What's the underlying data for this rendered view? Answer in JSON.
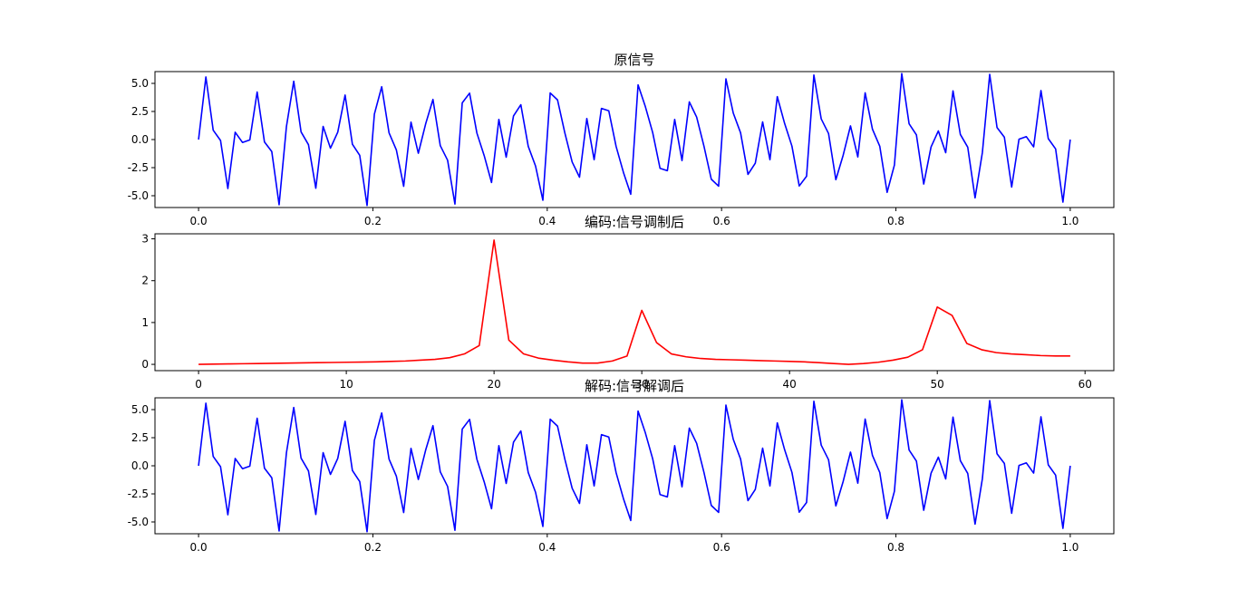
{
  "chart_data": [
    {
      "type": "line",
      "title": "原信号",
      "color": "#0000ff",
      "x": [
        0,
        0.0084,
        0.0168,
        0.0252,
        0.0336,
        0.042,
        0.0504,
        0.0588,
        0.0672,
        0.0756,
        0.084,
        0.0924,
        0.1008,
        0.1092,
        0.1176,
        0.1261,
        0.1345,
        0.1429,
        0.1513,
        0.1597,
        0.1681,
        0.1765,
        0.1849,
        0.1933,
        0.2017,
        0.2101,
        0.2185,
        0.2269,
        0.2353,
        0.2437,
        0.2521,
        0.2605,
        0.2689,
        0.2773,
        0.2857,
        0.2941,
        0.3025,
        0.3109,
        0.3193,
        0.3277,
        0.3361,
        0.3445,
        0.3529,
        0.3613,
        0.3697,
        0.3782,
        0.3866,
        0.395,
        0.4034,
        0.4118,
        0.4202,
        0.4286,
        0.437,
        0.4454,
        0.4538,
        0.4622,
        0.4706,
        0.479,
        0.4874,
        0.4958,
        0.5042,
        0.5126,
        0.521,
        0.5294,
        0.5378,
        0.5462,
        0.5546,
        0.563,
        0.5714,
        0.5798,
        0.5882,
        0.5966,
        0.605,
        0.6134,
        0.6218,
        0.6303,
        0.6387,
        0.6471,
        0.6555,
        0.6639,
        0.6723,
        0.6807,
        0.6891,
        0.6975,
        0.7059,
        0.7143,
        0.7227,
        0.7311,
        0.7395,
        0.7479,
        0.7563,
        0.7647,
        0.7731,
        0.7815,
        0.7899,
        0.7983,
        0.8067,
        0.8151,
        0.8235,
        0.8319,
        0.8403,
        0.8487,
        0.8571,
        0.8655,
        0.8739,
        0.8824,
        0.8908,
        0.8992,
        0.9076,
        0.916,
        0.9244,
        0.9328,
        0.9412,
        0.9496,
        0.958,
        0.9664,
        0.9748,
        0.9832,
        0.9916,
        1
      ],
      "values": [
        0,
        5.57,
        0.83,
        -0.08,
        -4.36,
        0.65,
        -0.26,
        -0.03,
        4.23,
        -0.21,
        -1.07,
        -5.8,
        1.15,
        5.19,
        0.68,
        -0.46,
        -4.33,
        1.17,
        -0.77,
        0.66,
        3.96,
        -0.42,
        -1.41,
        -5.87,
        2.26,
        4.7,
        0.6,
        -0.92,
        -4.16,
        1.55,
        -1.22,
        1.39,
        3.57,
        -0.54,
        -1.84,
        -5.74,
        3.27,
        4.13,
        0.58,
        -1.44,
        -3.82,
        1.79,
        -1.57,
        2.1,
        3.1,
        -0.6,
        -2.36,
        -5.4,
        4.15,
        3.53,
        0.59,
        -2,
        -3.35,
        1.87,
        -1.79,
        2.77,
        2.56,
        -0.61,
        -2.92,
        -4.87,
        4.87,
        2.92,
        0.61,
        -2.56,
        -2.77,
        1.79,
        -1.87,
        3.35,
        2,
        -0.59,
        -3.53,
        -4.15,
        5.4,
        2.36,
        0.6,
        -3.1,
        -2.1,
        1.57,
        -1.79,
        3.82,
        1.44,
        -0.58,
        -4.13,
        -3.27,
        5.74,
        1.84,
        0.54,
        -3.57,
        -1.39,
        1.22,
        -1.55,
        4.16,
        0.92,
        -0.6,
        -4.7,
        -2.26,
        5.87,
        1.41,
        0.42,
        -3.96,
        -0.66,
        0.77,
        -1.17,
        4.33,
        0.46,
        -0.68,
        -5.19,
        -1.15,
        5.8,
        1.07,
        0.21,
        -4.23,
        0.03,
        0.26,
        -0.65,
        4.36,
        0.08,
        -0.83,
        -5.57,
        0
      ],
      "xlim": [
        -0.05,
        1.05
      ],
      "ylim": [
        -6.05,
        6.05
      ],
      "xticks": [
        {
          "value": 0,
          "label": "0.0"
        },
        {
          "value": 0.2,
          "label": "0.2"
        },
        {
          "value": 0.4,
          "label": "0.4"
        },
        {
          "value": 0.6,
          "label": "0.6"
        },
        {
          "value": 0.8,
          "label": "0.8"
        },
        {
          "value": 1,
          "label": "1.0"
        }
      ],
      "yticks": [
        {
          "value": -5,
          "label": "-5.0"
        },
        {
          "value": -2.5,
          "label": "-2.5"
        },
        {
          "value": 0,
          "label": "0.0"
        },
        {
          "value": 2.5,
          "label": "2.5"
        },
        {
          "value": 5,
          "label": "5.0"
        }
      ]
    },
    {
      "type": "line",
      "title": "编码:信号调制后",
      "color": "#ff0000",
      "x": [
        0,
        1,
        2,
        3,
        4,
        5,
        6,
        7,
        8,
        9,
        10,
        11,
        12,
        13,
        14,
        15,
        16,
        17,
        18,
        19,
        20,
        21,
        22,
        23,
        24,
        25,
        26,
        27,
        28,
        29,
        30,
        31,
        32,
        33,
        34,
        35,
        36,
        37,
        38,
        39,
        40,
        41,
        42,
        43,
        44,
        45,
        46,
        47,
        48,
        49,
        50,
        51,
        52,
        53,
        54,
        55,
        56,
        57,
        58,
        59
      ],
      "values": [
        0,
        0.005,
        0.01,
        0.015,
        0.02,
        0.025,
        0.03,
        0.035,
        0.04,
        0.045,
        0.05,
        0.055,
        0.06,
        0.07,
        0.08,
        0.1,
        0.12,
        0.16,
        0.25,
        0.45,
        2.97,
        0.58,
        0.25,
        0.15,
        0.1,
        0.06,
        0.03,
        0.03,
        0.08,
        0.2,
        1.29,
        0.52,
        0.25,
        0.18,
        0.14,
        0.12,
        0.11,
        0.1,
        0.09,
        0.08,
        0.07,
        0.06,
        0.04,
        0.02,
        0,
        0.02,
        0.05,
        0.1,
        0.17,
        0.35,
        1.37,
        1.17,
        0.5,
        0.35,
        0.28,
        0.25,
        0.23,
        0.21,
        0.2,
        0.2
      ],
      "xlim": [
        -2.95,
        61.95
      ],
      "ylim": [
        -0.15,
        3.12
      ],
      "xticks": [
        0,
        10,
        20,
        30,
        40,
        50,
        60
      ],
      "yticks": [
        0,
        1,
        2,
        3
      ]
    },
    {
      "type": "line",
      "title": "解码:信号解调后",
      "color": "#0000ff",
      "x": [
        0,
        0.0084,
        0.0168,
        0.0252,
        0.0336,
        0.042,
        0.0504,
        0.0588,
        0.0672,
        0.0756,
        0.084,
        0.0924,
        0.1008,
        0.1092,
        0.1176,
        0.1261,
        0.1345,
        0.1429,
        0.1513,
        0.1597,
        0.1681,
        0.1765,
        0.1849,
        0.1933,
        0.2017,
        0.2101,
        0.2185,
        0.2269,
        0.2353,
        0.2437,
        0.2521,
        0.2605,
        0.2689,
        0.2773,
        0.2857,
        0.2941,
        0.3025,
        0.3109,
        0.3193,
        0.3277,
        0.3361,
        0.3445,
        0.3529,
        0.3613,
        0.3697,
        0.3782,
        0.3866,
        0.395,
        0.4034,
        0.4118,
        0.4202,
        0.4286,
        0.437,
        0.4454,
        0.4538,
        0.4622,
        0.4706,
        0.479,
        0.4874,
        0.4958,
        0.5042,
        0.5126,
        0.521,
        0.5294,
        0.5378,
        0.5462,
        0.5546,
        0.563,
        0.5714,
        0.5798,
        0.5882,
        0.5966,
        0.605,
        0.6134,
        0.6218,
        0.6303,
        0.6387,
        0.6471,
        0.6555,
        0.6639,
        0.6723,
        0.6807,
        0.6891,
        0.6975,
        0.7059,
        0.7143,
        0.7227,
        0.7311,
        0.7395,
        0.7479,
        0.7563,
        0.7647,
        0.7731,
        0.7815,
        0.7899,
        0.7983,
        0.8067,
        0.8151,
        0.8235,
        0.8319,
        0.8403,
        0.8487,
        0.8571,
        0.8655,
        0.8739,
        0.8824,
        0.8908,
        0.8992,
        0.9076,
        0.916,
        0.9244,
        0.9328,
        0.9412,
        0.9496,
        0.958,
        0.9664,
        0.9748,
        0.9832,
        0.9916,
        1
      ],
      "values": [
        0,
        5.57,
        0.83,
        -0.08,
        -4.36,
        0.65,
        -0.26,
        -0.03,
        4.23,
        -0.21,
        -1.07,
        -5.8,
        1.15,
        5.19,
        0.68,
        -0.46,
        -4.33,
        1.17,
        -0.77,
        0.66,
        3.96,
        -0.42,
        -1.41,
        -5.87,
        2.26,
        4.7,
        0.6,
        -0.92,
        -4.16,
        1.55,
        -1.22,
        1.39,
        3.57,
        -0.54,
        -1.84,
        -5.74,
        3.27,
        4.13,
        0.58,
        -1.44,
        -3.82,
        1.79,
        -1.57,
        2.1,
        3.1,
        -0.6,
        -2.36,
        -5.4,
        4.15,
        3.53,
        0.59,
        -2,
        -3.35,
        1.87,
        -1.79,
        2.77,
        2.56,
        -0.61,
        -2.92,
        -4.87,
        4.87,
        2.92,
        0.61,
        -2.56,
        -2.77,
        1.79,
        -1.87,
        3.35,
        2,
        -0.59,
        -3.53,
        -4.15,
        5.4,
        2.36,
        0.6,
        -3.1,
        -2.1,
        1.57,
        -1.79,
        3.82,
        1.44,
        -0.58,
        -4.13,
        -3.27,
        5.74,
        1.84,
        0.54,
        -3.57,
        -1.39,
        1.22,
        -1.55,
        4.16,
        0.92,
        -0.6,
        -4.7,
        -2.26,
        5.87,
        1.41,
        0.42,
        -3.96,
        -0.66,
        0.77,
        -1.17,
        4.33,
        0.46,
        -0.68,
        -5.19,
        -1.15,
        5.8,
        1.07,
        0.21,
        -4.23,
        0.03,
        0.26,
        -0.65,
        4.36,
        0.08,
        -0.83,
        -5.57,
        0
      ],
      "xlim": [
        -0.05,
        1.05
      ],
      "ylim": [
        -6.05,
        6.05
      ],
      "xticks": [
        {
          "value": 0,
          "label": "0.0"
        },
        {
          "value": 0.2,
          "label": "0.2"
        },
        {
          "value": 0.4,
          "label": "0.4"
        },
        {
          "value": 0.6,
          "label": "0.6"
        },
        {
          "value": 0.8,
          "label": "0.8"
        },
        {
          "value": 1,
          "label": "1.0"
        }
      ],
      "yticks": [
        {
          "value": -5,
          "label": "-5.0"
        },
        {
          "value": -2.5,
          "label": "-2.5"
        },
        {
          "value": 0,
          "label": "0.0"
        },
        {
          "value": 2.5,
          "label": "2.5"
        },
        {
          "value": 5,
          "label": "5.0"
        }
      ]
    }
  ]
}
